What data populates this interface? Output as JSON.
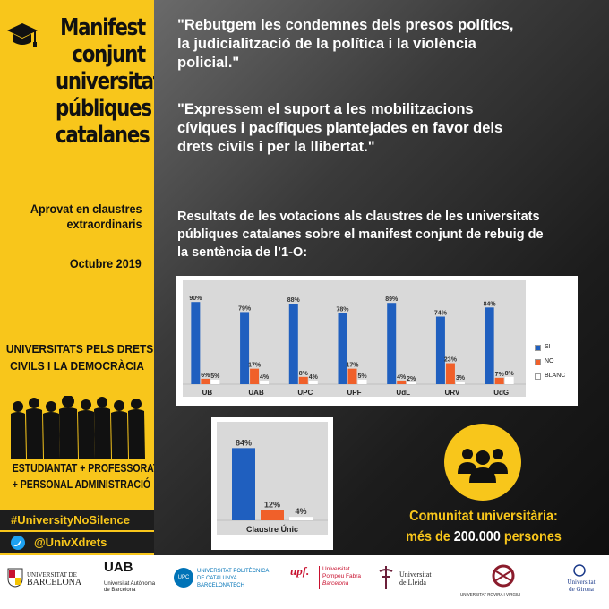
{
  "sidebar": {
    "title_lines": [
      "Manifest",
      "conjunt",
      "universitats",
      "públiques",
      "catalanes"
    ],
    "approved_lines": [
      "Aprovat en claustres",
      "extraordinaris"
    ],
    "date": "Octubre 2019",
    "slogan_lines": [
      "UNIVERSITATS PELS DRETS",
      "CIVILS I LA DEMOCRÀCIA"
    ],
    "staff_lines": [
      "ESTUDIANTAT + PROFESSORAT",
      "+ PERSONAL ADMINISTRACIÓ"
    ],
    "hashtag": "#UniversityNoSilence",
    "twitter_handle": "@UnivXdrets"
  },
  "quotes": {
    "q1_lines": [
      "\"Rebutgem les condemnes dels presos polítics,",
      "la judicialització de la política i la violència",
      "policial.\""
    ],
    "q2_lines": [
      "\"Expressem el suport a les mobilitzacions",
      "cíviques i pacífiques plantejades en favor dels",
      "drets civils i per la llibertat.\""
    ]
  },
  "results_title_lines": [
    "Resultats de les votacions als claustres de les universitats",
    "públiques catalanes sobre el manifest conjunt de rebuig de",
    "la sentència de l’1-O:"
  ],
  "chart_data": [
    {
      "type": "bar",
      "categories": [
        "UB",
        "UAB",
        "UPC",
        "UPF",
        "UdL",
        "URV",
        "UdG"
      ],
      "series": [
        {
          "name": "SI",
          "values": [
            90,
            79,
            88,
            78,
            89,
            74,
            84
          ],
          "color": "#1f5fbf"
        },
        {
          "name": "NO",
          "values": [
            6,
            17,
            8,
            17,
            4,
            23,
            7
          ],
          "color": "#f0602a"
        },
        {
          "name": "BLANC",
          "values": [
            5,
            4,
            4,
            5,
            2,
            3,
            8
          ],
          "color": "#ffffff"
        }
      ],
      "value_labels": [
        [
          "90%",
          "79%",
          "88%",
          "78%",
          "89%",
          "74%",
          "84%"
        ],
        [
          "6%",
          "17%",
          "8%",
          "17%",
          "4%",
          "23%",
          "7%"
        ],
        [
          "5%",
          "4%",
          "4%",
          "5%",
          "2%",
          "3%",
          "8%"
        ]
      ],
      "ylim": [
        0,
        100
      ],
      "legend": "right"
    },
    {
      "type": "bar",
      "categories": [
        "Claustre Únic"
      ],
      "series": [
        {
          "values": [
            84
          ],
          "color": "#1f5fbf"
        },
        {
          "values": [
            12
          ],
          "color": "#f0602a"
        },
        {
          "values": [
            4
          ],
          "color": "#ffffff"
        }
      ],
      "value_labels": [
        "84%",
        "12%",
        "4%"
      ],
      "ylim": [
        0,
        100
      ]
    }
  ],
  "community": {
    "line1": "Comunitat universitària:",
    "line2_pre": "més de ",
    "line2_num": "200.000",
    "line2_post": " persones"
  },
  "logos": {
    "ub": [
      "UNIVERSITAT DE",
      "BARCELONA"
    ],
    "uab_mark": "UAB",
    "uab": [
      "Universitat Autònoma",
      "de Barcelona"
    ],
    "upc": [
      "UNIVERSITAT POLITÈCNICA",
      "DE CATALUNYA",
      "BARCELONATECH"
    ],
    "upc_mark": "UPC",
    "upf_mark": "upf.",
    "upf": [
      "Universitat",
      "Pompeu Fabra",
      "Barcelona"
    ],
    "udl": [
      "Universitat",
      "de Lleida"
    ],
    "urv": "UNIVERSITAT ROVIRA I VIRGILI",
    "udg": [
      "Universitat",
      "de Girona"
    ]
  },
  "colors": {
    "accent_yellow": "#f8c61b",
    "si_blue": "#1f5fbf",
    "no_orange": "#f0602a"
  }
}
